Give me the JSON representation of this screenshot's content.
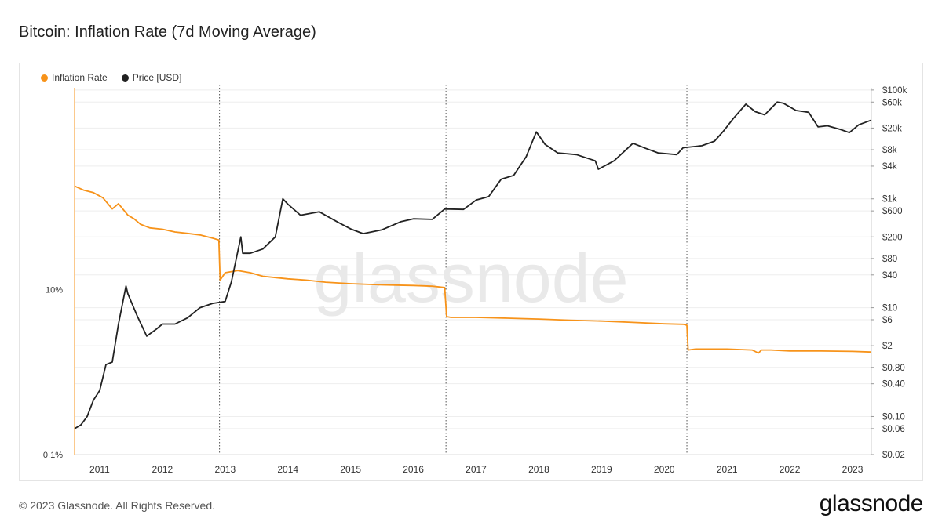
{
  "header": {
    "title": "Bitcoin: Inflation Rate (7d Moving Average)"
  },
  "legend": [
    {
      "label": "Inflation Rate",
      "color": "#f7931a"
    },
    {
      "label": "Price [USD]",
      "color": "#222222"
    }
  ],
  "watermark": "glassnode",
  "footer": {
    "copyright": "© 2023 Glassnode. All Rights Reserved.",
    "brand": "glassnode"
  },
  "chart_data": {
    "type": "line",
    "title": "Bitcoin: Inflation Rate (7d Moving Average)",
    "x_range": [
      2010.6,
      2023.3
    ],
    "x_ticks": [
      {
        "value": 2011,
        "label": "2011"
      },
      {
        "value": 2012,
        "label": "2012"
      },
      {
        "value": 2013,
        "label": "2013"
      },
      {
        "value": 2014,
        "label": "2014"
      },
      {
        "value": 2015,
        "label": "2015"
      },
      {
        "value": 2016,
        "label": "2016"
      },
      {
        "value": 2017,
        "label": "2017"
      },
      {
        "value": 2018,
        "label": "2018"
      },
      {
        "value": 2019,
        "label": "2019"
      },
      {
        "value": 2020,
        "label": "2020"
      },
      {
        "value": 2021,
        "label": "2021"
      },
      {
        "value": 2022,
        "label": "2022"
      },
      {
        "value": 2023,
        "label": "2023"
      }
    ],
    "y_left": {
      "scale": "log",
      "range": [
        0.1,
        2800
      ],
      "ticks": [
        {
          "value": 0.1,
          "label": "0.1%"
        },
        {
          "value": 10,
          "label": "10%"
        }
      ]
    },
    "y_right": {
      "scale": "log",
      "range": [
        0.02,
        110000
      ],
      "ticks": [
        {
          "value": 100000,
          "label": "$100k"
        },
        {
          "value": 60000,
          "label": "$60k"
        },
        {
          "value": 20000,
          "label": "$20k"
        },
        {
          "value": 8000,
          "label": "$8k"
        },
        {
          "value": 4000,
          "label": "$4k"
        },
        {
          "value": 1000,
          "label": "$1k"
        },
        {
          "value": 600,
          "label": "$600"
        },
        {
          "value": 200,
          "label": "$200"
        },
        {
          "value": 80,
          "label": "$80"
        },
        {
          "value": 40,
          "label": "$40"
        },
        {
          "value": 10,
          "label": "$10"
        },
        {
          "value": 6,
          "label": "$6"
        },
        {
          "value": 2,
          "label": "$2"
        },
        {
          "value": 0.8,
          "label": "$0.80"
        },
        {
          "value": 0.4,
          "label": "$0.40"
        },
        {
          "value": 0.1,
          "label": "$0.10"
        },
        {
          "value": 0.06,
          "label": "$0.06"
        },
        {
          "value": 0.02,
          "label": "$0.02"
        }
      ]
    },
    "halving_dates": [
      2012.91,
      2016.52,
      2020.36
    ],
    "series": [
      {
        "name": "Inflation Rate",
        "axis": "left",
        "color": "#f7931a",
        "x": [
          2010.6,
          2010.75,
          2010.9,
          2011.05,
          2011.2,
          2011.3,
          2011.45,
          2011.55,
          2011.65,
          2011.8,
          2012.0,
          2012.2,
          2012.4,
          2012.6,
          2012.8,
          2012.9,
          2012.92,
          2013.0,
          2013.2,
          2013.4,
          2013.6,
          2013.8,
          2014.0,
          2014.3,
          2014.6,
          2015.0,
          2015.5,
          2016.0,
          2016.3,
          2016.5,
          2016.53,
          2016.6,
          2017.0,
          2017.5,
          2018.0,
          2018.5,
          2019.0,
          2019.5,
          2020.0,
          2020.3,
          2020.36,
          2020.38,
          2020.5,
          2021.0,
          2021.4,
          2021.5,
          2021.55,
          2021.7,
          2022.0,
          2022.5,
          2023.0,
          2023.3
        ],
        "y": [
          180,
          160,
          150,
          130,
          95,
          110,
          80,
          72,
          62,
          56,
          54,
          50,
          48,
          46,
          42,
          40,
          13,
          16,
          17,
          16,
          14.5,
          14,
          13.5,
          13,
          12.3,
          11.8,
          11.4,
          11.2,
          11.0,
          10.6,
          4.7,
          4.6,
          4.6,
          4.5,
          4.4,
          4.25,
          4.15,
          4.0,
          3.85,
          3.8,
          3.7,
          1.85,
          1.9,
          1.9,
          1.85,
          1.7,
          1.85,
          1.85,
          1.8,
          1.8,
          1.78,
          1.75
        ]
      },
      {
        "name": "Price [USD]",
        "axis": "right",
        "color": "#222222",
        "x": [
          2010.6,
          2010.7,
          2010.8,
          2010.9,
          2011.0,
          2011.1,
          2011.2,
          2011.3,
          2011.42,
          2011.45,
          2011.6,
          2011.75,
          2011.9,
          2012.0,
          2012.2,
          2012.4,
          2012.6,
          2012.8,
          2013.0,
          2013.1,
          2013.25,
          2013.28,
          2013.4,
          2013.6,
          2013.8,
          2013.92,
          2014.0,
          2014.2,
          2014.5,
          2014.8,
          2015.0,
          2015.2,
          2015.5,
          2015.8,
          2016.0,
          2016.3,
          2016.5,
          2016.8,
          2017.0,
          2017.2,
          2017.4,
          2017.6,
          2017.8,
          2017.96,
          2018.1,
          2018.3,
          2018.6,
          2018.9,
          2018.95,
          2019.2,
          2019.5,
          2019.7,
          2019.9,
          2020.2,
          2020.3,
          2020.6,
          2020.8,
          2020.95,
          2021.1,
          2021.3,
          2021.45,
          2021.6,
          2021.8,
          2021.9,
          2022.1,
          2022.3,
          2022.45,
          2022.6,
          2022.8,
          2022.95,
          2023.1,
          2023.3
        ],
        "y": [
          0.06,
          0.07,
          0.1,
          0.2,
          0.3,
          0.9,
          1.0,
          5,
          25,
          18,
          7,
          3,
          4,
          5,
          5,
          6.5,
          10,
          12,
          13,
          30,
          200,
          100,
          100,
          120,
          200,
          1000,
          800,
          500,
          580,
          370,
          280,
          230,
          270,
          380,
          430,
          420,
          650,
          640,
          950,
          1100,
          2300,
          2700,
          6000,
          17000,
          10000,
          7000,
          6500,
          5000,
          3500,
          5000,
          10500,
          8500,
          7000,
          6500,
          8700,
          9500,
          11500,
          18000,
          30000,
          55000,
          40000,
          35000,
          60000,
          57000,
          42000,
          39000,
          21000,
          22000,
          19000,
          16500,
          23000,
          28000
        ]
      }
    ]
  }
}
